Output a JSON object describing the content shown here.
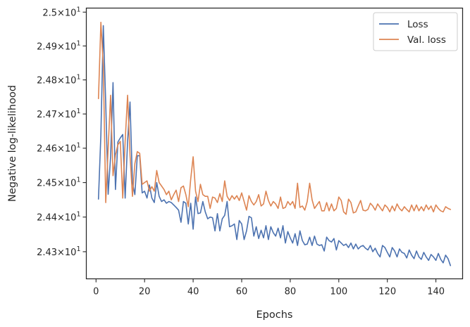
{
  "chart_data": {
    "type": "line",
    "xlabel": "Epochs",
    "ylabel": "Negative log-likelihood",
    "xlim": [
      -4,
      151
    ],
    "ylim": [
      24.222,
      25.012
    ],
    "y_scale": "log",
    "grid": false,
    "legend_position": "top-right",
    "x_ticks": [
      0,
      20,
      40,
      60,
      80,
      100,
      120,
      140
    ],
    "x_tick_labels": [
      "0",
      "20",
      "40",
      "60",
      "80",
      "100",
      "120",
      "140"
    ],
    "y_ticks": [
      24.3,
      24.4,
      24.5,
      24.6,
      24.7,
      24.8,
      24.9,
      25.0
    ],
    "y_tick_labels": [
      {
        "mant": "2.43",
        "exp": "1"
      },
      {
        "mant": "2.44",
        "exp": "1"
      },
      {
        "mant": "2.45",
        "exp": "1"
      },
      {
        "mant": "2.46",
        "exp": "1"
      },
      {
        "mant": "2.47",
        "exp": "1"
      },
      {
        "mant": "2.48",
        "exp": "1"
      },
      {
        "mant": "2.49",
        "exp": "1"
      },
      {
        "mant": "2.5",
        "exp": "1"
      }
    ],
    "x": [
      1,
      2,
      3,
      4,
      5,
      6,
      7,
      8,
      9,
      10,
      11,
      12,
      13,
      14,
      15,
      16,
      17,
      18,
      19,
      20,
      21,
      22,
      23,
      24,
      25,
      26,
      27,
      28,
      29,
      30,
      31,
      32,
      33,
      34,
      35,
      36,
      37,
      38,
      39,
      40,
      41,
      42,
      43,
      44,
      45,
      46,
      47,
      48,
      49,
      50,
      51,
      52,
      53,
      54,
      55,
      56,
      57,
      58,
      59,
      60,
      61,
      62,
      63,
      64,
      65,
      66,
      67,
      68,
      69,
      70,
      71,
      72,
      73,
      74,
      75,
      76,
      77,
      78,
      79,
      80,
      81,
      82,
      83,
      84,
      85,
      86,
      87,
      88,
      89,
      90,
      91,
      92,
      93,
      94,
      95,
      96,
      97,
      98,
      99,
      100,
      101,
      102,
      103,
      104,
      105,
      106,
      107,
      108,
      109,
      110,
      111,
      112,
      113,
      114,
      115,
      116,
      117,
      118,
      119,
      120,
      121,
      122,
      123,
      124,
      125,
      126,
      127,
      128,
      129,
      130,
      131,
      132,
      133,
      134,
      135,
      136,
      137,
      138,
      139,
      140,
      141,
      142,
      143,
      144,
      145,
      146
    ],
    "series": [
      {
        "name": "Loss",
        "color": "#4c72b0",
        "values": [
          24.452,
          24.64,
          24.96,
          24.73,
          24.466,
          24.575,
          24.792,
          24.48,
          24.618,
          24.63,
          24.64,
          24.455,
          24.62,
          24.735,
          24.5,
          24.465,
          24.578,
          24.578,
          24.47,
          24.475,
          24.455,
          24.493,
          24.455,
          24.442,
          24.5,
          24.46,
          24.445,
          24.45,
          24.44,
          24.445,
          24.442,
          24.435,
          24.428,
          24.42,
          24.385,
          24.445,
          24.44,
          24.38,
          24.44,
          24.365,
          24.458,
          24.41,
          24.412,
          24.445,
          24.415,
          24.395,
          24.4,
          24.398,
          24.36,
          24.41,
          24.36,
          24.395,
          24.405,
          24.445,
          24.372,
          24.375,
          24.38,
          24.335,
          24.39,
          24.38,
          24.335,
          24.36,
          24.402,
          24.398,
          24.345,
          24.372,
          24.338,
          24.362,
          24.34,
          24.375,
          24.335,
          24.372,
          24.355,
          24.345,
          24.368,
          24.34,
          24.375,
          24.325,
          24.358,
          24.34,
          24.325,
          24.352,
          24.318,
          24.36,
          24.332,
          24.32,
          24.322,
          24.342,
          24.318,
          24.345,
          24.322,
          24.318,
          24.32,
          24.302,
          24.342,
          24.332,
          24.328,
          24.338,
          24.305,
          24.332,
          24.325,
          24.318,
          24.322,
          24.312,
          24.325,
          24.308,
          24.322,
          24.308,
          24.315,
          24.318,
          24.31,
          24.305,
          24.318,
          24.3,
          24.31,
          24.295,
          24.285,
          24.318,
          24.312,
          24.298,
          24.285,
          24.312,
          24.302,
          24.285,
          24.308,
          24.298,
          24.295,
          24.282,
          24.305,
          24.29,
          24.28,
          24.302,
          24.285,
          24.278,
          24.298,
          24.285,
          24.275,
          24.292,
          24.285,
          24.275,
          24.295,
          24.278,
          24.268,
          24.29,
          24.28,
          24.26
        ]
      },
      {
        "name": "Val. loss",
        "color": "#dd8452",
        "values": [
          24.745,
          24.97,
          24.84,
          24.442,
          24.6,
          24.755,
          24.52,
          24.58,
          24.61,
          24.62,
          24.455,
          24.62,
          24.755,
          24.58,
          24.46,
          24.555,
          24.59,
          24.585,
          24.495,
          24.5,
          24.505,
          24.475,
          24.488,
          24.475,
          24.535,
          24.5,
          24.49,
          24.48,
          24.465,
          24.475,
          24.45,
          24.465,
          24.478,
          24.445,
          24.485,
          24.49,
          24.465,
          24.43,
          24.51,
          24.575,
          24.475,
          24.445,
          24.495,
          24.465,
          24.46,
          24.46,
          24.425,
          24.458,
          24.455,
          24.442,
          24.468,
          24.445,
          24.505,
          24.46,
          24.448,
          24.462,
          24.452,
          24.462,
          24.448,
          24.47,
          24.445,
          24.42,
          24.462,
          24.445,
          24.435,
          24.445,
          24.465,
          24.432,
          24.438,
          24.475,
          24.448,
          24.432,
          24.445,
          24.438,
          24.425,
          24.458,
          24.425,
          24.428,
          24.445,
          24.435,
          24.445,
          24.425,
          24.498,
          24.428,
          24.432,
          24.42,
          24.445,
          24.498,
          24.45,
          24.425,
          24.435,
          24.445,
          24.418,
          24.418,
          24.442,
          24.418,
          24.438,
          24.418,
          24.425,
          24.458,
          24.448,
          24.415,
          24.408,
          24.452,
          24.442,
          24.412,
          24.415,
          24.432,
          24.448,
          24.42,
          24.418,
          24.422,
          24.44,
          24.432,
          24.42,
          24.438,
          24.428,
          24.418,
          24.435,
          24.428,
          24.415,
          24.432,
          24.418,
          24.438,
          24.425,
          24.418,
          24.43,
          24.422,
          24.415,
          24.435,
          24.418,
          24.435,
          24.418,
          24.43,
          24.418,
          24.435,
          24.422,
          24.432,
          24.415,
          24.435,
          24.425,
          24.418,
          24.415,
          24.43,
          24.425,
          24.422
        ]
      }
    ]
  }
}
